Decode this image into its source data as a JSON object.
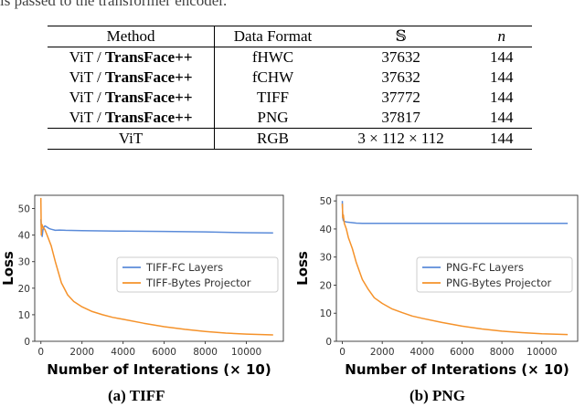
{
  "cutoff_text": "is passed to the transformer encoder.",
  "table": {
    "headers": [
      "Method",
      "Data Format",
      "𝕊",
      "n"
    ],
    "rows": [
      {
        "method_a": "ViT / ",
        "method_b": "TransFace++",
        "format": "fHWC",
        "s": "37632",
        "n": "144"
      },
      {
        "method_a": "ViT / ",
        "method_b": "TransFace++",
        "format": "fCHW",
        "s": "37632",
        "n": "144"
      },
      {
        "method_a": "ViT / ",
        "method_b": "TransFace++",
        "format": "TIFF",
        "s": "37772",
        "n": "144"
      },
      {
        "method_a": "ViT / ",
        "method_b": "TransFace++",
        "format": "PNG",
        "s": "37817",
        "n": "144"
      },
      {
        "method_a": "ViT",
        "method_b": "",
        "format": "RGB",
        "s": "3 × 112 × 112",
        "n": "144"
      }
    ]
  },
  "chart_data": [
    {
      "type": "line",
      "caption": "(a)  TIFF",
      "xlabel": "Number of Interations (× 10)",
      "ylabel": "Loss",
      "xlim": [
        -300,
        11800
      ],
      "ylim": [
        0,
        55
      ],
      "xticks": [
        0,
        2000,
        4000,
        6000,
        8000,
        10000
      ],
      "yticks": [
        0,
        10,
        20,
        30,
        40,
        50
      ],
      "legend_position": "center-right",
      "series": [
        {
          "name": "TIFF-FC Layers",
          "color": "#5b8bd9",
          "x": [
            0,
            30,
            60,
            100,
            150,
            200,
            300,
            400,
            500,
            700,
            900,
            1200,
            2000,
            4000,
            6000,
            8000,
            10000,
            11300
          ],
          "y": [
            46,
            42,
            39.5,
            42,
            43,
            43.5,
            43,
            42.5,
            42.2,
            41.8,
            41.9,
            41.8,
            41.7,
            41.5,
            41.4,
            41.2,
            40.9,
            40.8
          ]
        },
        {
          "name": "TIFF-Bytes Projector",
          "color": "#f5922a",
          "x": [
            0,
            20,
            50,
            100,
            200,
            300,
            500,
            700,
            1000,
            1300,
            1600,
            2000,
            2500,
            3000,
            3500,
            4000,
            5000,
            6000,
            7000,
            8000,
            9000,
            10000,
            11300
          ],
          "y": [
            54,
            40,
            44,
            43,
            42,
            40,
            36,
            30,
            22,
            17.5,
            15,
            13,
            11.2,
            10,
            9,
            8.3,
            6.8,
            5.5,
            4.5,
            3.7,
            3.1,
            2.7,
            2.4
          ]
        }
      ]
    },
    {
      "type": "line",
      "caption": "(b)  PNG",
      "xlabel": "Number of Interations (× 10)",
      "ylabel": "Loss",
      "xlim": [
        -300,
        11800
      ],
      "ylim": [
        0,
        52
      ],
      "xticks": [
        0,
        2000,
        4000,
        6000,
        8000,
        10000
      ],
      "yticks": [
        0,
        10,
        20,
        30,
        40,
        50
      ],
      "legend_position": "center-right",
      "series": [
        {
          "name": "PNG-FC Layers",
          "color": "#5b8bd9",
          "x": [
            0,
            20,
            50,
            100,
            200,
            400,
            700,
            1000,
            2000,
            4000,
            6000,
            8000,
            10000,
            11300
          ],
          "y": [
            50,
            44,
            43,
            42.7,
            42.5,
            42.3,
            42.1,
            42,
            42,
            42,
            42,
            42,
            42,
            42
          ]
        },
        {
          "name": "PNG-Bytes Projector",
          "color": "#f5922a",
          "x": [
            0,
            20,
            50,
            100,
            200,
            300,
            500,
            700,
            1000,
            1300,
            1600,
            2000,
            2500,
            3000,
            3500,
            4000,
            5000,
            6000,
            7000,
            8000,
            9000,
            10000,
            11300
          ],
          "y": [
            49,
            44,
            45,
            42,
            40,
            37,
            33,
            28,
            22,
            18.5,
            15.5,
            13.5,
            11.5,
            10.2,
            9,
            8.2,
            6.7,
            5.4,
            4.4,
            3.6,
            3.1,
            2.7,
            2.4
          ]
        }
      ]
    }
  ]
}
